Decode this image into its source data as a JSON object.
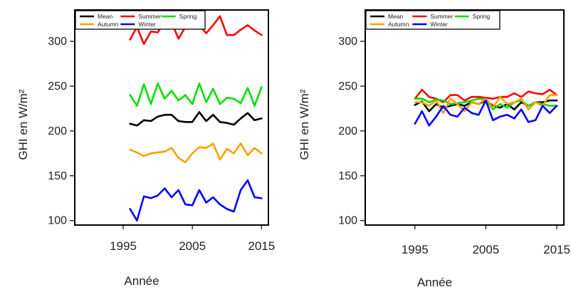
{
  "chart_data": [
    {
      "type": "line",
      "xlabel": "Année",
      "ylabel": "GHI  en W/m²",
      "xlim": [
        1988,
        2016
      ],
      "ylim": [
        95,
        335
      ],
      "xticks": [
        1995,
        2005,
        2015
      ],
      "yticks": [
        100,
        150,
        200,
        250,
        300
      ],
      "legend_placement": "top-left",
      "grid": false,
      "x": [
        1996,
        1997,
        1998,
        1999,
        2000,
        2001,
        2002,
        2003,
        2004,
        2005,
        2006,
        2007,
        2008,
        2009,
        2010,
        2011,
        2012,
        2013,
        2014,
        2015
      ],
      "series": [
        {
          "name": "Mean",
          "color": "#000000",
          "values": [
            208,
            206,
            212,
            211,
            216,
            218,
            218,
            211,
            210,
            210,
            221,
            211,
            218,
            210,
            209,
            207,
            214,
            220,
            212,
            214
          ]
        },
        {
          "name": "Summer",
          "color": "#ff0000",
          "values": [
            302,
            316,
            297,
            311,
            310,
            322,
            321,
            303,
            316,
            316,
            318,
            309,
            318,
            328,
            307,
            307,
            313,
            318,
            312,
            307
          ]
        },
        {
          "name": "Spring",
          "color": "#00e000",
          "values": [
            240,
            228,
            252,
            230,
            253,
            236,
            245,
            234,
            240,
            230,
            253,
            232,
            247,
            230,
            237,
            236,
            231,
            248,
            228,
            249
          ]
        },
        {
          "name": "Autumn",
          "color": "#ffa000",
          "values": [
            179,
            176,
            172,
            175,
            176,
            177,
            181,
            170,
            165,
            175,
            182,
            181,
            186,
            168,
            180,
            175,
            186,
            173,
            181,
            175
          ]
        },
        {
          "name": "Winter",
          "color": "#0000ff",
          "values": [
            113,
            100,
            127,
            125,
            128,
            136,
            126,
            134,
            118,
            117,
            134,
            120,
            126,
            118,
            113,
            110,
            134,
            145,
            126,
            125
          ]
        }
      ]
    },
    {
      "type": "line",
      "xlabel": "Année",
      "ylabel": "GHI  en W/m²",
      "xlim": [
        1988,
        2016
      ],
      "ylim": [
        95,
        335
      ],
      "xticks": [
        1995,
        2005,
        2015
      ],
      "yticks": [
        100,
        150,
        200,
        250,
        300
      ],
      "legend_placement": "top-left",
      "grid": false,
      "x": [
        1995,
        1996,
        1997,
        1998,
        1999,
        2000,
        2001,
        2002,
        2003,
        2004,
        2005,
        2006,
        2007,
        2008,
        2009,
        2010,
        2011,
        2012,
        2013,
        2014,
        2015
      ],
      "series": [
        {
          "name": "Mean",
          "color": "#000000",
          "values": [
            229,
            233,
            222,
            230,
            226,
            228,
            230,
            228,
            232,
            230,
            234,
            228,
            226,
            230,
            224,
            232,
            228,
            232,
            232,
            234,
            234
          ]
        },
        {
          "name": "Summer",
          "color": "#ff0000",
          "values": [
            236,
            246,
            238,
            236,
            232,
            240,
            240,
            234,
            238,
            238,
            237,
            236,
            238,
            238,
            242,
            238,
            244,
            242,
            241,
            246,
            240
          ]
        },
        {
          "name": "Spring",
          "color": "#00e000",
          "values": [
            236,
            236,
            232,
            235,
            234,
            230,
            231,
            232,
            234,
            236,
            235,
            224,
            230,
            226,
            232,
            234,
            228,
            232,
            230,
            228,
            228
          ]
        },
        {
          "name": "Autumn",
          "color": "#ffa000",
          "values": [
            232,
            232,
            228,
            234,
            220,
            236,
            230,
            222,
            232,
            230,
            236,
            226,
            238,
            230,
            232,
            236,
            224,
            232,
            228,
            240,
            240
          ]
        },
        {
          "name": "Winter",
          "color": "#0000ff",
          "values": [
            208,
            222,
            206,
            216,
            228,
            218,
            216,
            226,
            220,
            218,
            234,
            212,
            216,
            218,
            214,
            224,
            210,
            212,
            228,
            220,
            228
          ]
        }
      ]
    }
  ]
}
